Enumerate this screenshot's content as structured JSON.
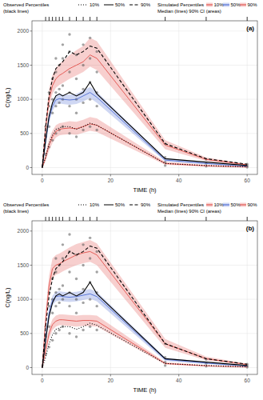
{
  "chart_data": [
    {
      "type": "line",
      "title": "(a)",
      "x_label": "TIME (h)",
      "y_label": "C(ng/L)",
      "xlim": [
        -3,
        63
      ],
      "ylim": [
        -100,
        2150
      ],
      "xticks": [
        0,
        20,
        40,
        60
      ],
      "yticks": [
        0,
        500,
        1000,
        1500,
        2000
      ],
      "grid": true,
      "legend_titles": [
        [
          "Observed Percentiles",
          "(black lines)"
        ],
        [
          "Simulated Percentiles",
          "Median (lines) 90% CI (areas)"
        ]
      ],
      "x": [
        0,
        1,
        2,
        3,
        4,
        5,
        6,
        8,
        10,
        12,
        14,
        16,
        36,
        48,
        60
      ],
      "series": [
        {
          "name": "10%",
          "color": "#000000",
          "line_style": "dotted",
          "values": [
            0,
            150,
            350,
            480,
            560,
            580,
            600,
            600,
            560,
            600,
            650,
            620,
            60,
            30,
            10
          ]
        },
        {
          "name": "50%",
          "color": "#000000",
          "line_style": "solid",
          "values": [
            0,
            400,
            750,
            950,
            1050,
            1080,
            1050,
            1100,
            1050,
            1100,
            1250,
            1080,
            130,
            80,
            30
          ]
        },
        {
          "name": "90%",
          "color": "#000000",
          "line_style": "dashed",
          "values": [
            0,
            600,
            1050,
            1300,
            1450,
            1500,
            1550,
            1700,
            1650,
            1700,
            1780,
            1750,
            350,
            130,
            50
          ]
        },
        {
          "name": "10%",
          "color": "#e0403a",
          "line_style": "solid",
          "values": [
            0,
            150,
            330,
            450,
            530,
            560,
            570,
            580,
            570,
            600,
            640,
            620,
            60,
            25,
            8
          ],
          "ci_lower": [
            0,
            90,
            250,
            360,
            440,
            470,
            480,
            490,
            480,
            510,
            540,
            520,
            40,
            15,
            4
          ],
          "ci_upper": [
            0,
            220,
            420,
            540,
            620,
            650,
            660,
            680,
            670,
            700,
            740,
            720,
            85,
            40,
            14
          ]
        },
        {
          "name": "50%",
          "color": "#3f5fd0",
          "line_style": "solid",
          "values": [
            0,
            380,
            720,
            900,
            990,
            1010,
            1000,
            990,
            1000,
            1050,
            1100,
            1030,
            110,
            60,
            20
          ],
          "ci_lower": [
            0,
            320,
            650,
            830,
            920,
            940,
            930,
            920,
            930,
            970,
            1020,
            950,
            90,
            48,
            15
          ],
          "ci_upper": [
            0,
            440,
            790,
            970,
            1060,
            1080,
            1070,
            1070,
            1080,
            1130,
            1180,
            1110,
            135,
            75,
            26
          ]
        },
        {
          "name": "90%",
          "color": "#e0403a",
          "line_style": "solid",
          "values": [
            0,
            580,
            1000,
            1200,
            1300,
            1350,
            1380,
            1450,
            1500,
            1550,
            1650,
            1600,
            330,
            120,
            40
          ],
          "ci_lower": [
            0,
            480,
            880,
            1080,
            1170,
            1210,
            1240,
            1300,
            1350,
            1400,
            1480,
            1430,
            270,
            95,
            30
          ],
          "ci_upper": [
            0,
            700,
            1150,
            1360,
            1460,
            1520,
            1560,
            1650,
            1720,
            1780,
            1900,
            1850,
            400,
            150,
            52
          ]
        }
      ],
      "observations": {
        "x": [
          1,
          1,
          1,
          2,
          2,
          2,
          2,
          3,
          3,
          3,
          3,
          4,
          4,
          4,
          4,
          4,
          5,
          5,
          5,
          5,
          6,
          6,
          6,
          6,
          6,
          8,
          8,
          8,
          8,
          8,
          8,
          10,
          10,
          10,
          10,
          10,
          12,
          12,
          12,
          12,
          12,
          14,
          14,
          14,
          14,
          14,
          16,
          16,
          16,
          16,
          16,
          36,
          36,
          36,
          36,
          48,
          48,
          48,
          60,
          60,
          60
        ],
        "y": [
          200,
          450,
          600,
          300,
          600,
          900,
          1100,
          400,
          800,
          1000,
          1300,
          500,
          900,
          1100,
          1400,
          1600,
          550,
          950,
          1150,
          1500,
          600,
          1000,
          1200,
          1600,
          1800,
          500,
          900,
          1100,
          1400,
          1700,
          1950,
          450,
          800,
          1000,
          1300,
          1650,
          550,
          950,
          1150,
          1500,
          1800,
          600,
          1000,
          1250,
          1600,
          1900,
          550,
          900,
          1100,
          1400,
          1700,
          30,
          80,
          150,
          350,
          20,
          60,
          120,
          5,
          25,
          50
        ]
      },
      "rug_x": [
        1,
        2,
        3,
        4,
        5,
        6,
        8,
        10,
        12,
        14,
        16,
        36,
        48,
        60
      ]
    },
    {
      "type": "line",
      "title": "(b)",
      "x_label": "TIME (h)",
      "y_label": "C(ng/L)",
      "xlim": [
        -3,
        63
      ],
      "ylim": [
        -100,
        2150
      ],
      "xticks": [
        0,
        20,
        40,
        60
      ],
      "yticks": [
        0,
        500,
        1000,
        1500,
        2000
      ],
      "grid": true,
      "legend_titles": [
        [
          "Observed Percentiles",
          "(black lines)"
        ],
        [
          "Simulated Percentiles",
          "Median (lines) 90% CI (areas)"
        ]
      ],
      "x": [
        0,
        1,
        2,
        3,
        4,
        5,
        6,
        8,
        10,
        12,
        14,
        16,
        36,
        48,
        60
      ],
      "series": [
        {
          "name": "10%",
          "color": "#000000",
          "line_style": "dotted",
          "values": [
            0,
            150,
            350,
            480,
            560,
            580,
            600,
            600,
            560,
            600,
            650,
            620,
            60,
            30,
            10
          ]
        },
        {
          "name": "50%",
          "color": "#000000",
          "line_style": "solid",
          "values": [
            0,
            400,
            750,
            950,
            1050,
            1080,
            1050,
            1100,
            1050,
            1100,
            1250,
            1080,
            130,
            80,
            30
          ]
        },
        {
          "name": "90%",
          "color": "#000000",
          "line_style": "dashed",
          "values": [
            0,
            600,
            1050,
            1300,
            1450,
            1500,
            1550,
            1700,
            1650,
            1700,
            1780,
            1750,
            350,
            130,
            50
          ]
        },
        {
          "name": "10%",
          "color": "#e0403a",
          "line_style": "solid",
          "values": [
            0,
            250,
            500,
            630,
            680,
            700,
            700,
            690,
            680,
            690,
            690,
            680,
            60,
            25,
            8
          ],
          "ci_lower": [
            0,
            190,
            420,
            550,
            600,
            620,
            620,
            610,
            600,
            610,
            610,
            600,
            45,
            17,
            5
          ],
          "ci_upper": [
            0,
            320,
            580,
            710,
            760,
            780,
            780,
            770,
            760,
            770,
            770,
            760,
            80,
            35,
            12
          ]
        },
        {
          "name": "50%",
          "color": "#3f5fd0",
          "line_style": "solid",
          "values": [
            0,
            420,
            800,
            980,
            1040,
            1050,
            1040,
            1030,
            1040,
            1060,
            1080,
            1040,
            120,
            65,
            22
          ],
          "ci_lower": [
            0,
            360,
            730,
            910,
            970,
            980,
            970,
            960,
            970,
            990,
            1010,
            970,
            95,
            52,
            17
          ],
          "ci_upper": [
            0,
            480,
            870,
            1050,
            1110,
            1120,
            1110,
            1100,
            1110,
            1130,
            1150,
            1110,
            145,
            80,
            28
          ]
        },
        {
          "name": "90%",
          "color": "#e0403a",
          "line_style": "solid",
          "values": [
            0,
            700,
            1200,
            1450,
            1500,
            1520,
            1550,
            1600,
            1650,
            1680,
            1700,
            1650,
            350,
            130,
            45
          ],
          "ci_lower": [
            0,
            580,
            1070,
            1310,
            1360,
            1380,
            1410,
            1460,
            1500,
            1530,
            1550,
            1500,
            290,
            105,
            35
          ],
          "ci_upper": [
            0,
            830,
            1340,
            1600,
            1650,
            1670,
            1700,
            1760,
            1810,
            1840,
            1870,
            1820,
            420,
            160,
            56
          ]
        }
      ],
      "observations": {
        "x": [
          1,
          1,
          1,
          2,
          2,
          2,
          2,
          3,
          3,
          3,
          3,
          4,
          4,
          4,
          4,
          4,
          5,
          5,
          5,
          5,
          6,
          6,
          6,
          6,
          6,
          8,
          8,
          8,
          8,
          8,
          8,
          10,
          10,
          10,
          10,
          10,
          12,
          12,
          12,
          12,
          12,
          14,
          14,
          14,
          14,
          14,
          16,
          16,
          16,
          16,
          16,
          36,
          36,
          36,
          36,
          48,
          48,
          48,
          60,
          60,
          60
        ],
        "y": [
          200,
          450,
          600,
          300,
          600,
          900,
          1100,
          400,
          800,
          1000,
          1300,
          500,
          900,
          1100,
          1400,
          1600,
          550,
          950,
          1150,
          1500,
          600,
          1000,
          1200,
          1600,
          1800,
          500,
          900,
          1100,
          1400,
          1700,
          1950,
          450,
          800,
          1000,
          1300,
          1650,
          550,
          950,
          1150,
          1500,
          1800,
          600,
          1000,
          1250,
          1600,
          1900,
          550,
          900,
          1100,
          1400,
          1700,
          30,
          80,
          150,
          350,
          20,
          60,
          120,
          5,
          25,
          50
        ]
      },
      "rug_x": [
        1,
        2,
        3,
        4,
        5,
        6,
        8,
        10,
        12,
        14,
        16,
        36,
        48,
        60
      ]
    }
  ]
}
